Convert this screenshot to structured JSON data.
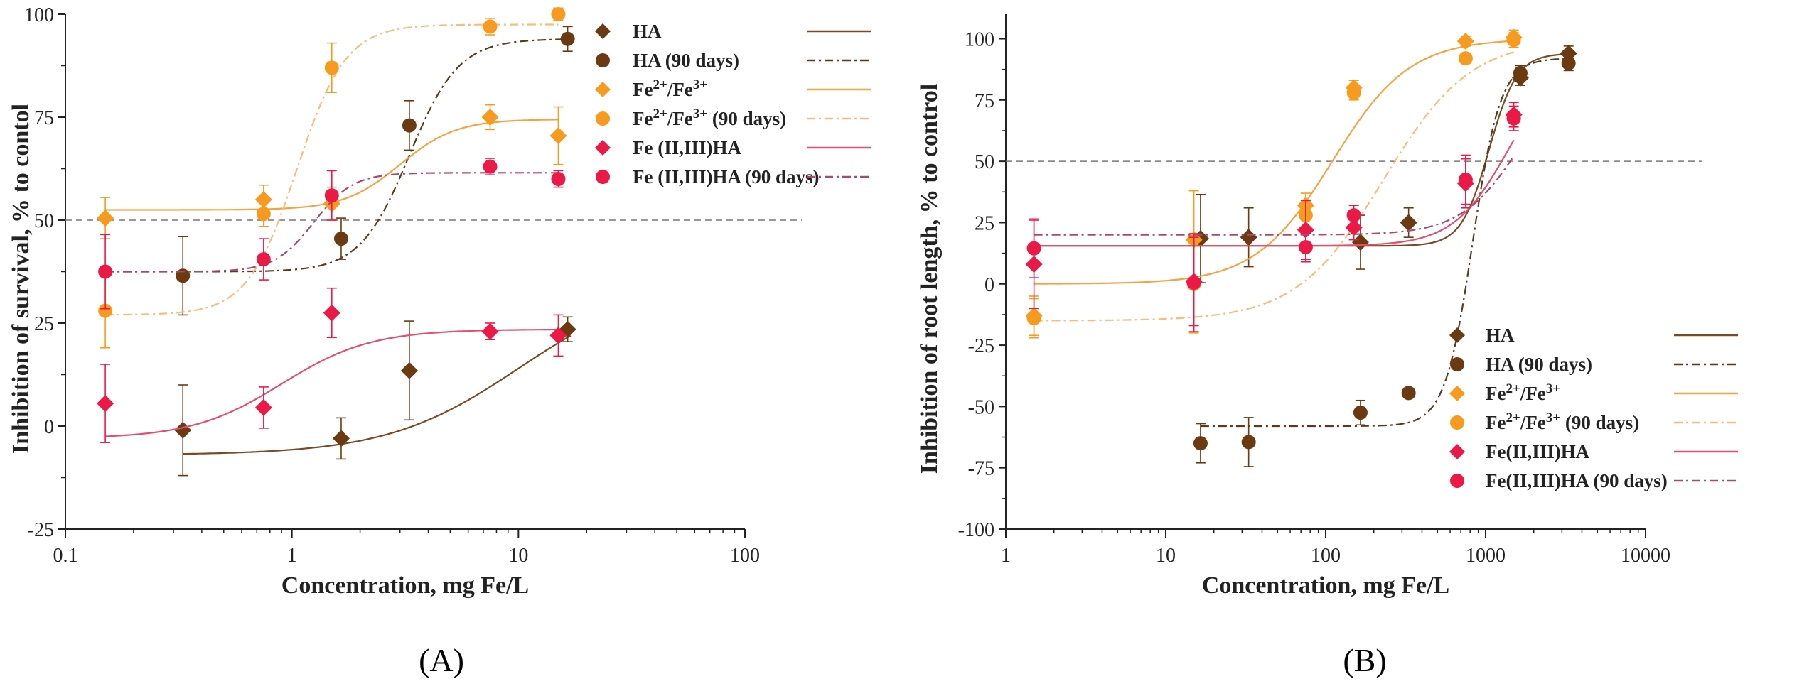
{
  "chart_data": [
    {
      "panel": "A",
      "type": "scatter",
      "xscale": "log",
      "xlim": [
        0.1,
        100
      ],
      "ylim": [
        -25,
        100
      ],
      "xticks": [
        "0.1",
        "1",
        "10",
        "100"
      ],
      "yticks": [
        "-25",
        "0",
        "25",
        "50",
        "75",
        "100"
      ],
      "xlabel": "Concentration, mg Fe/L",
      "ylabel": "Inhibition of survival, % to contol",
      "reference_line": 50,
      "legend_position": "top-right",
      "series": [
        {
          "id": "HA",
          "name": "HA",
          "sup": "",
          "tail": "",
          "marker": "diamond",
          "color": "#6b3a10",
          "line_color": "#7a4a22",
          "dash": "",
          "x": [
            0.33,
            1.65,
            3.3,
            16.5
          ],
          "y": [
            -1,
            -3,
            13.5,
            23.5
          ],
          "err": [
            11,
            5,
            12,
            3
          ],
          "fit": {
            "bottom": -7,
            "top": 35,
            "x50": 10,
            "hill": 1.5,
            "xmin": 0.33,
            "xmax": 17
          }
        },
        {
          "id": "HA90",
          "name": "HA (90 days)",
          "sup": "",
          "tail": "",
          "marker": "circle",
          "color": "#6b3a10",
          "line_color": "#5a3a1e",
          "dash": "12,5,3,5",
          "x": [
            0.33,
            1.65,
            3.3,
            16.5
          ],
          "y": [
            36.5,
            45.5,
            73,
            94
          ],
          "err": [
            9.5,
            5,
            6,
            3
          ],
          "fit": {
            "bottom": 37.5,
            "top": 94,
            "x50": 3.3,
            "hill": 4,
            "xmin": 0.15,
            "xmax": 17
          }
        },
        {
          "id": "Fe",
          "name": "Fe",
          "sup": "2+",
          "tail": "/Fe",
          "sup2": "3+",
          "tail2": "",
          "marker": "diamond",
          "color": "#f79a1e",
          "line_color": "#f4a340",
          "dash": "",
          "x": [
            0.15,
            0.75,
            1.5,
            7.5,
            15
          ],
          "y": [
            50.5,
            55,
            54,
            75,
            70.5
          ],
          "err": [
            5,
            3.5,
            4,
            3,
            7
          ],
          "fit": {
            "bottom": 52.5,
            "top": 74.5,
            "x50": 3.0,
            "hill": 3.5,
            "xmin": 0.15,
            "xmax": 15
          }
        },
        {
          "id": "Fe90",
          "name": "Fe",
          "sup": "2+",
          "tail": "/Fe",
          "sup2": "3+",
          "tail2": " (90 days)",
          "marker": "circle",
          "color": "#f79a1e",
          "line_color": "#f7bd78",
          "dash": "12,5,3,5",
          "x": [
            0.15,
            0.75,
            1.5,
            7.5,
            15
          ],
          "y": [
            28,
            51.5,
            87,
            97,
            100
          ],
          "err": [
            9,
            3,
            6,
            2,
            1.5
          ],
          "fit": {
            "bottom": 27,
            "top": 97.5,
            "x50": 1.05,
            "hill": 4,
            "xmin": 0.15,
            "xmax": 15
          }
        },
        {
          "id": "FeHA",
          "name": "Fe (II,III)HA",
          "sup": "",
          "tail": "",
          "marker": "diamond",
          "color": "#ec1845",
          "line_color": "#e34f6e",
          "dash": "",
          "x": [
            0.15,
            0.75,
            1.5,
            7.5,
            15
          ],
          "y": [
            5.5,
            4.5,
            27.5,
            23,
            22
          ],
          "err": [
            9.5,
            5,
            6,
            2,
            5
          ],
          "fit": {
            "bottom": -3,
            "top": 23.5,
            "x50": 0.9,
            "hill": 2.2,
            "xmin": 0.15,
            "xmax": 15
          }
        },
        {
          "id": "FeHA90",
          "name": "Fe (II,III)HA (90 days)",
          "sup": "",
          "tail": "",
          "marker": "circle",
          "color": "#ec1845",
          "line_color": "#a84a6e",
          "dash": "12,5,3,5",
          "x": [
            0.15,
            0.75,
            1.5,
            7.5,
            15
          ],
          "y": [
            37.5,
            40.5,
            56,
            63,
            60
          ],
          "err": [
            9,
            5,
            6,
            2,
            2
          ],
          "fit": {
            "bottom": 37.5,
            "top": 61.5,
            "x50": 1.25,
            "hill": 5,
            "xmin": 0.15,
            "xmax": 15
          }
        }
      ]
    },
    {
      "panel": "B",
      "type": "scatter",
      "xscale": "log",
      "xlim": [
        1,
        10000
      ],
      "ylim": [
        -100,
        110
      ],
      "xticks": [
        "1",
        "10",
        "100",
        "1000",
        "10000"
      ],
      "yticks": [
        "-100",
        "-75",
        "-50",
        "-25",
        "0",
        "25",
        "50",
        "75",
        "100"
      ],
      "xlabel": "Concentration, mg Fe/L",
      "ylabel": "Inhibition of root length, % to control",
      "reference_line": 50,
      "legend_position": "bottom-right",
      "series": [
        {
          "id": "HA",
          "name": "HA",
          "sup": "",
          "tail": "",
          "marker": "diamond",
          "color": "#6b3a10",
          "line_color": "#7a4a22",
          "dash": "",
          "x": [
            16.5,
            33,
            165,
            330,
            1650,
            3300
          ],
          "y": [
            18.5,
            19,
            17,
            25,
            84,
            94
          ],
          "err": [
            18,
            12,
            11,
            6,
            3,
            3
          ],
          "fit": {
            "bottom": 15.5,
            "top": 94,
            "x50": 1050,
            "hill": 5,
            "xmin": 1.5,
            "xmax": 3300
          }
        },
        {
          "id": "HA90",
          "name": "HA (90 days)",
          "sup": "",
          "tail": "",
          "marker": "circle",
          "color": "#6b3a10",
          "line_color": "#5a3a1e",
          "dash": "12,5,3,5",
          "x": [
            16.5,
            33,
            165,
            330,
            1650,
            3300
          ],
          "y": [
            -65,
            -64.5,
            -52.5,
            -44.5,
            86,
            90
          ],
          "err": [
            8,
            10,
            5,
            2,
            3,
            3
          ],
          "fit": {
            "bottom": -58,
            "top": 92,
            "x50": 830,
            "hill": 5,
            "xmin": 16.5,
            "xmax": 3300
          }
        },
        {
          "id": "Fe",
          "name": "Fe",
          "sup": "2+",
          "tail": "/Fe",
          "sup2": "3+",
          "tail2": "",
          "marker": "diamond",
          "color": "#f79a1e",
          "line_color": "#f4a340",
          "dash": "",
          "x": [
            1.5,
            15,
            75,
            150,
            750,
            1500
          ],
          "y": [
            -13,
            18,
            32,
            80,
            99,
            100.5
          ],
          "err": [
            8,
            20,
            5,
            3,
            2,
            3
          ],
          "fit": {
            "bottom": 0,
            "top": 100,
            "x50": 110,
            "hill": 1.8,
            "xmin": 1.5,
            "xmax": 1500
          }
        },
        {
          "id": "Fe90",
          "name": "Fe",
          "sup": "2+",
          "tail": "/Fe",
          "sup2": "3+",
          "tail2": " (90 days)",
          "marker": "circle",
          "color": "#f79a1e",
          "line_color": "#f7bd78",
          "dash": "12,5,3,5",
          "x": [
            1.5,
            15,
            75,
            150,
            750,
            1500
          ],
          "y": [
            -14,
            0,
            28,
            78,
            92,
            99.5
          ],
          "err": [
            8,
            20,
            5,
            3,
            2,
            3
          ],
          "fit": {
            "bottom": -15,
            "top": 100,
            "x50": 230,
            "hill": 1.6,
            "xmin": 1.5,
            "xmax": 1500
          }
        },
        {
          "id": "FeHA",
          "name": "Fe(II,III)HA",
          "sup": "",
          "tail": "",
          "marker": "diamond",
          "color": "#ec1845",
          "line_color": "#e34f6e",
          "dash": "",
          "x": [
            1.5,
            15,
            75,
            150,
            750,
            1500
          ],
          "y": [
            8,
            1,
            22,
            23,
            41,
            69
          ],
          "err": [
            18,
            18,
            12,
            5,
            10,
            5
          ],
          "fit": {
            "bottom": 15.5,
            "top": 95,
            "x50": 1400,
            "hill": 2.5,
            "xmin": 1.5,
            "xmax": 1500
          }
        },
        {
          "id": "FeHA90",
          "name": "Fe(II,III)HA (90 days)",
          "sup": "",
          "tail": "",
          "marker": "circle",
          "color": "#ec1845",
          "line_color": "#a84a6e",
          "dash": "12,5,3,5",
          "x": [
            1.5,
            15,
            75,
            150,
            750,
            1500
          ],
          "y": [
            14.5,
            0.5,
            15,
            28,
            42.5,
            67.5
          ],
          "err": [
            12,
            20,
            6,
            4,
            10,
            5
          ],
          "fit": {
            "bottom": 20,
            "top": 95,
            "x50": 1700,
            "hill": 2.3,
            "xmin": 1.5,
            "xmax": 1500
          }
        }
      ]
    }
  ],
  "panel_labels": [
    "(A)",
    "(B)"
  ]
}
